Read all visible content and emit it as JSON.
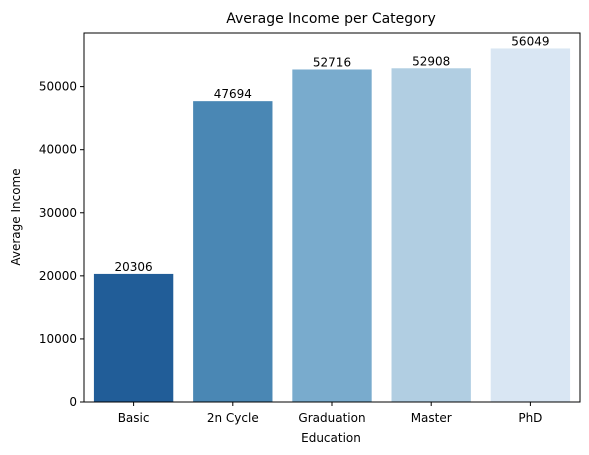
{
  "chart_data": {
    "type": "bar",
    "title": "Average Income per Category",
    "xlabel": "Education",
    "ylabel": "Average Income",
    "categories": [
      "Basic",
      "2n Cycle",
      "Graduation",
      "Master",
      "PhD"
    ],
    "values": [
      20306,
      47694,
      52716,
      52908,
      56049
    ],
    "data_labels": [
      "20306",
      "47694",
      "52716",
      "52908",
      "56049"
    ],
    "colors": [
      "#215d98",
      "#4a87b4",
      "#79abcd",
      "#b1cee2",
      "#d9e6f3"
    ],
    "ylim": [
      0,
      58500
    ],
    "yticks": [
      0,
      10000,
      20000,
      30000,
      40000,
      50000
    ],
    "ytick_labels": [
      "0",
      "10000",
      "20000",
      "30000",
      "40000",
      "50000"
    ],
    "grid": false,
    "legend": "none"
  }
}
